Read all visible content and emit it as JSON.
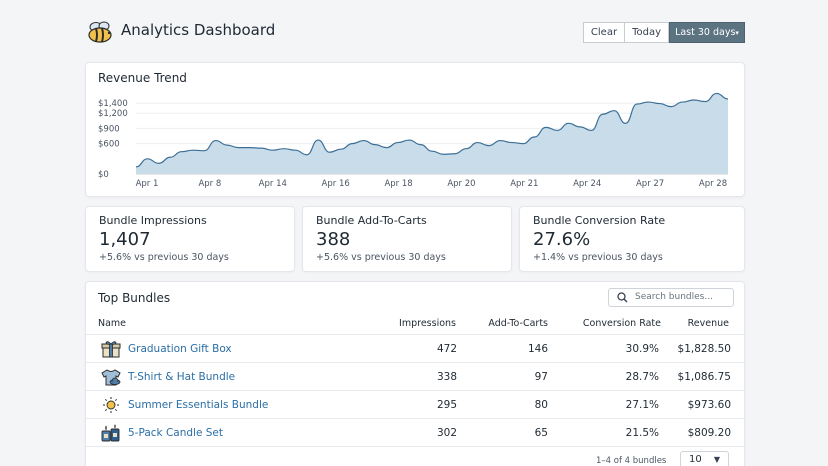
{
  "app": {
    "title": "Analytics Dashboard",
    "logo_icon": "bee-icon"
  },
  "toolbar": {
    "clear_label": "Clear",
    "today_label": "Today",
    "range_label": "Last 30 days"
  },
  "colors": {
    "accent": "#5c7382",
    "chart_fill": "#c5dae9",
    "chart_line": "#3c6f96",
    "link": "#2a6ea6"
  },
  "revenue": {
    "title": "Revenue Trend"
  },
  "chart_data": {
    "type": "area",
    "title": "Revenue Trend",
    "xlabel": "",
    "ylabel": "",
    "ylim": [
      0,
      1500
    ],
    "y_ticks": [
      "$1,400",
      "$1,200",
      "$900",
      "$600",
      "$0"
    ],
    "y_tick_values": [
      1400,
      1200,
      900,
      600,
      0
    ],
    "x_ticks": [
      "Apr 1",
      "Apr 8",
      "Apr 14",
      "Apr 16",
      "Apr 18",
      "Apr 20",
      "Apr 21",
      "Apr 24",
      "Apr 27",
      "Apr 28"
    ],
    "grid": true,
    "series": [
      {
        "values": [
          140,
          300,
          210,
          330,
          440,
          470,
          460,
          660,
          570,
          520,
          520,
          510,
          470,
          500,
          470,
          380,
          670,
          430,
          490,
          600,
          660,
          580,
          520,
          620,
          670,
          580,
          450,
          390,
          400,
          500,
          620,
          560,
          660,
          620,
          600,
          730,
          920,
          860,
          1000,
          930,
          860,
          1180,
          1250,
          1000,
          1380,
          1420,
          1390,
          1330,
          1420,
          1460,
          1430,
          1590,
          1480
        ]
      }
    ]
  },
  "stats": [
    {
      "label": "Bundle Impressions",
      "value": "1,407",
      "change": "+5.6% vs previous 30 days"
    },
    {
      "label": "Bundle Add-To-Carts",
      "value": "388",
      "change": "+5.6% vs  previous 30 days"
    },
    {
      "label": "Bundle Conversion Rate",
      "value": "27.6%",
      "change": "+1.4% vs  previous 30 days"
    }
  ],
  "top_bundles": {
    "title": "Top Bundles",
    "search_placeholder": "Search bundles...",
    "columns": [
      "Name",
      "Impressions",
      "Add-To-Carts",
      "Conversion Rate",
      "Revenue"
    ],
    "rows": [
      {
        "icon": "gift-icon",
        "name": "Graduation Gift Box",
        "impressions": "472",
        "add_to_carts": "146",
        "conversion": "30.9%",
        "revenue": "$1,828.50"
      },
      {
        "icon": "tshirt-icon",
        "name": "T-Shirt & Hat Bundle",
        "impressions": "338",
        "add_to_carts": "97",
        "conversion": "28.7%",
        "revenue": "$1,086.75"
      },
      {
        "icon": "sun-icon",
        "name": "Summer Essentials Bundle",
        "impressions": "295",
        "add_to_carts": "80",
        "conversion": "27.1%",
        "revenue": "$973.60"
      },
      {
        "icon": "candles-icon",
        "name": "5-Pack Candle Set",
        "impressions": "302",
        "add_to_carts": "65",
        "conversion": "21.5%",
        "revenue": "$809.20"
      }
    ],
    "pagination_text": "1–4 of 4 bundles",
    "page_size": "10"
  }
}
